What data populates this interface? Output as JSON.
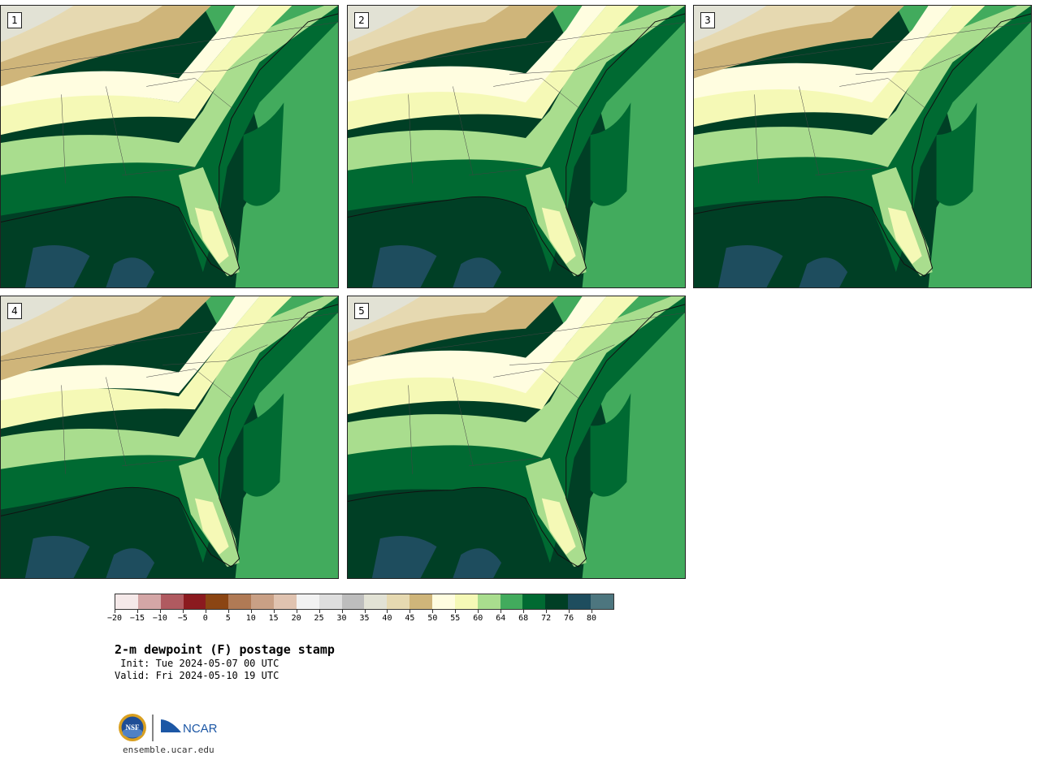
{
  "panels": [
    {
      "label": "1",
      "variant": "a"
    },
    {
      "label": "2",
      "variant": "b"
    },
    {
      "label": "3",
      "variant": "c"
    },
    {
      "label": "4",
      "variant": "d"
    },
    {
      "label": "5",
      "variant": "e"
    }
  ],
  "colorbar": {
    "colors": [
      "#f5e9e9",
      "#d4a6a6",
      "#b05a60",
      "#8b1a1f",
      "#8b4513",
      "#b07a55",
      "#c9a085",
      "#e0c3b0",
      "#f2f2f2",
      "#dedede",
      "#bdbdbd",
      "#e2e2d5",
      "#e6d9b1",
      "#cfb57a",
      "#fffde0",
      "#f5f9b6",
      "#a9dd8e",
      "#42ab5d",
      "#006a32",
      "#003f25",
      "#1e4d5e",
      "#4d767f"
    ],
    "ticks": [
      "−20",
      "−15",
      "−10",
      "−5",
      "0",
      "5",
      "10",
      "15",
      "20",
      "25",
      "30",
      "35",
      "40",
      "45",
      "50",
      "55",
      "60",
      "64",
      "68",
      "72",
      "76",
      "80"
    ]
  },
  "title": "2-m dewpoint (F) postage stamp",
  "init": " Init: Tue 2024-05-07 00 UTC",
  "valid": "Valid: Fri 2024-05-10 19 UTC",
  "logos": {
    "nsf": "NSF",
    "ncar": "NCAR"
  },
  "footer_url": "ensemble.ucar.edu"
}
